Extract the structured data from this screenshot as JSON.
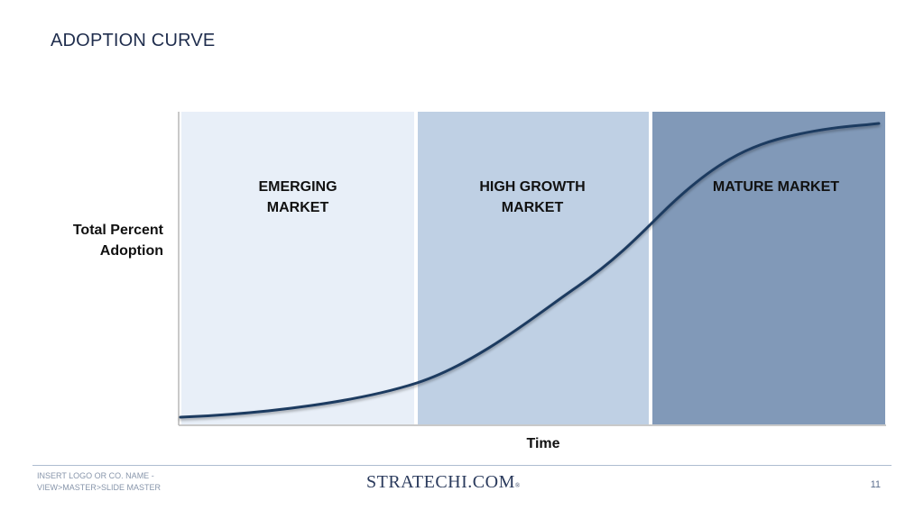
{
  "slide": {
    "title": "ADOPTION CURVE"
  },
  "diagram": {
    "y_axis_label": [
      "Total Percent",
      "Adoption"
    ],
    "x_axis_label": "Time",
    "phases": [
      {
        "label_lines": [
          "EMERGING",
          "MARKET"
        ],
        "color": "#e8eff8"
      },
      {
        "label_lines": [
          "HIGH GROWTH",
          "MARKET"
        ],
        "color": "#bfd0e4"
      },
      {
        "label_lines": [
          "MATURE MARKET"
        ],
        "color": "#8199b8"
      }
    ],
    "curve_color": "#1e3a60",
    "axis_color": "#b7b7b7"
  },
  "footer": {
    "left_lines": [
      "INSERT LOGO OR CO. NAME -",
      "VIEW>MASTER>SLIDE MASTER"
    ],
    "brand": "STRATECHI.COM",
    "brand_mark": "®",
    "page_number": "11"
  }
}
